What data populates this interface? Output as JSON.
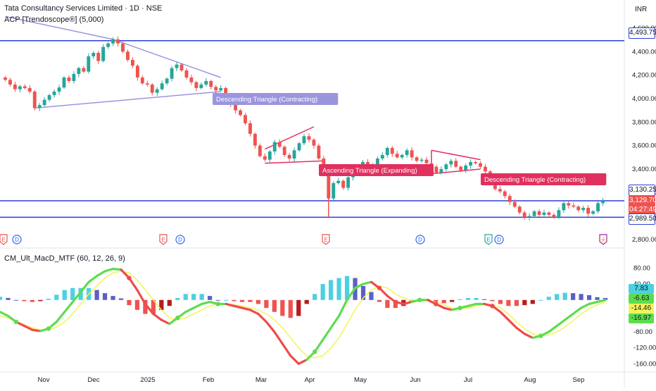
{
  "header": {
    "symbol_title": "Tata Consultancy Services Limited · 1D · NSE",
    "indicator_1": "ACP [Trendoscope®] (5,000)",
    "indicator_2": "CM_Ult_MacD_MTF (60, 12, 26, 9)",
    "currency": "INR"
  },
  "colors": {
    "up_candle": "#26a69a",
    "down_candle": "#ef5350",
    "hline": "#2a3fd8",
    "pattern_purple": "#9b95de",
    "pattern_red": "#e0305f",
    "hist_up": "#4dd0e1",
    "hist_up_dark": "#5b5fc7",
    "hist_down": "#ef5350",
    "macd_green": "#5ddd4e",
    "macd_red": "#ef4b4b",
    "signal_yellow": "#f3f35a"
  },
  "price_pills": [
    {
      "text": "4,493.75",
      "bg": "#ffffff",
      "fg": "#131722",
      "border": "#2a3fd8"
    },
    {
      "text": "3,130.25",
      "bg": "#ffffff",
      "fg": "#131722",
      "border": "#2a3fd8"
    },
    {
      "text": "3,129.70",
      "bg": "#ef5350",
      "fg": "#ffffff",
      "border": "#ef5350"
    },
    {
      "text": "04:27:49",
      "bg": "#ef5350",
      "fg": "#ffffff",
      "border": "#ef5350"
    },
    {
      "text": "2,989.50",
      "bg": "#ffffff",
      "fg": "#131722",
      "border": "#2a3fd8"
    }
  ],
  "macd_pills": [
    {
      "text": "7.83",
      "bg": "#4dd0e1",
      "fg": "#131722"
    },
    {
      "text": "-6.63",
      "bg": "#5ddd4e",
      "fg": "#131722"
    },
    {
      "text": "-14.46",
      "bg": "#f3f35a",
      "fg": "#131722"
    },
    {
      "text": "-16.97",
      "bg": "#5ddd4e",
      "fg": "#131722"
    }
  ],
  "pattern_labels": [
    {
      "text": "Descending Triangle (Contracting)",
      "color": "#9b95de"
    },
    {
      "text": "Ascending Triangle (Expanding)",
      "color": "#e0305f"
    },
    {
      "text": "Descending Triangle (Contracting)",
      "color": "#e0305f"
    }
  ],
  "event_markers": [
    {
      "letter": "E",
      "color": "#ef5350"
    },
    {
      "letter": "D",
      "color": "#2962ff"
    },
    {
      "letter": "E",
      "color": "#ef5350"
    },
    {
      "letter": "D",
      "color": "#2962ff"
    },
    {
      "letter": "E",
      "color": "#ef5350"
    },
    {
      "letter": "D",
      "color": "#2962ff"
    },
    {
      "letter": "E",
      "color": "#26a69a"
    },
    {
      "letter": "D",
      "color": "#2962ff"
    },
    {
      "letter": "⚡",
      "color": "#9c27b0"
    }
  ],
  "chart_data": [
    {
      "type": "candlestick",
      "title": "Tata Consultancy Services Limited · 1D · NSE",
      "x_ticks": [
        "Nov",
        "Dec",
        "2025",
        "Feb",
        "Mar",
        "Apr",
        "May",
        "Jun",
        "Jul",
        "Aug",
        "Sep"
      ],
      "y_ticks": [
        "4,600.00",
        "4,400.00",
        "4,200.00",
        "4,000.00",
        "3,800.00",
        "3,600.00",
        "3,400.00",
        "3,200.00",
        "3,000.00",
        "2,800.00"
      ],
      "ylim": [
        2800,
        4660
      ],
      "horizontal_levels": [
        4493.75,
        3130.25,
        2989.5
      ],
      "last_price": 3129.7,
      "series": [
        {
          "name": "TCS",
          "close": [
            4160,
            4120,
            4080,
            4105,
            4090,
            4060,
            3920,
            3945,
            3990,
            4030,
            4060,
            4095,
            4180,
            4150,
            4210,
            4260,
            4230,
            4360,
            4390,
            4320,
            4440,
            4470,
            4505,
            4470,
            4400,
            4330,
            4280,
            4180,
            4130,
            4120,
            4050,
            4080,
            4130,
            4170,
            4260,
            4290,
            4240,
            4180,
            4140,
            4090,
            4120,
            4150,
            4100,
            4070,
            4090,
            4030,
            3950,
            3900,
            3860,
            3790,
            3700,
            3600,
            3510,
            3480,
            3550,
            3630,
            3590,
            3520,
            3490,
            3560,
            3620,
            3680,
            3650,
            3600,
            3490,
            3380,
            3150,
            3280,
            3300,
            3240,
            3330,
            3390,
            3430,
            3460,
            3420,
            3440,
            3490,
            3520,
            3580,
            3530,
            3500,
            3520,
            3560,
            3500,
            3470,
            3480,
            3450,
            3420,
            3370,
            3400,
            3440,
            3470,
            3420,
            3390,
            3430,
            3460,
            3450,
            3420,
            3380,
            3320,
            3230,
            3210,
            3170,
            3120,
            3080,
            3030,
            2990,
            3000,
            3040,
            3010,
            3030,
            3010,
            2990,
            3050,
            3110,
            3090,
            3080,
            3050,
            3070,
            3020,
            3040,
            3110,
            3129.7
          ]
        }
      ],
      "annotations": [
        {
          "type": "triangle",
          "label": "Descending Triangle (Contracting)"
        },
        {
          "type": "triangle",
          "label": "Ascending Triangle (Expanding)"
        },
        {
          "type": "triangle",
          "label": "Descending Triangle (Contracting)"
        }
      ]
    },
    {
      "type": "line",
      "title": "CM_Ult_MacD_MTF (60, 12, 26, 9)",
      "y_ticks": [
        "80.00",
        "40.00",
        "0.00",
        "-40.00",
        "-80.00",
        "-120.00",
        "-160.00"
      ],
      "ylim": [
        -170,
        95
      ],
      "series": [
        {
          "name": "MACD",
          "values": [
            -30,
            -40,
            -55,
            -65,
            -75,
            -78,
            -72,
            -55,
            -30,
            -5,
            20,
            45,
            60,
            72,
            78,
            76,
            55,
            25,
            -10,
            -35,
            -50,
            -60,
            -45,
            -30,
            -20,
            -10,
            -5,
            -10,
            -10,
            -15,
            -20,
            -25,
            -35,
            -55,
            -80,
            -110,
            -140,
            -160,
            -150,
            -130,
            -100,
            -70,
            -40,
            0,
            30,
            40,
            45,
            30,
            10,
            -5,
            -10,
            -5,
            0,
            0,
            -10,
            -20,
            -25,
            -20,
            -15,
            -10,
            -10,
            -15,
            -30,
            -50,
            -70,
            -85,
            -95,
            -90,
            -80,
            -65,
            -50,
            -35,
            -20,
            -10,
            -5,
            0
          ]
        },
        {
          "name": "Signal",
          "values": [
            -40,
            -45,
            -55,
            -62,
            -70,
            -75,
            -75,
            -68,
            -55,
            -35,
            -10,
            15,
            35,
            55,
            68,
            72,
            68,
            50,
            25,
            0,
            -25,
            -45,
            -50,
            -45,
            -35,
            -25,
            -15,
            -10,
            -10,
            -12,
            -15,
            -20,
            -25,
            -35,
            -50,
            -70,
            -95,
            -120,
            -140,
            -145,
            -140,
            -120,
            -95,
            -60,
            -25,
            5,
            25,
            35,
            30,
            15,
            5,
            -2,
            -3,
            -2,
            -5,
            -12,
            -20,
            -22,
            -20,
            -15,
            -12,
            -12,
            -20,
            -35,
            -55,
            -72,
            -85,
            -90,
            -88,
            -80,
            -68,
            -52,
            -35,
            -22,
            -12,
            -5
          ]
        },
        {
          "name": "Histogram",
          "values": [
            8,
            5,
            0,
            -3,
            -5,
            -3,
            3,
            13,
            25,
            30,
            30,
            30,
            25,
            17,
            10,
            4,
            -13,
            -25,
            -35,
            -35,
            -25,
            -15,
            5,
            15,
            15,
            15,
            10,
            0,
            0,
            -3,
            -5,
            -5,
            -10,
            -20,
            -30,
            -40,
            -45,
            -40,
            -10,
            15,
            40,
            50,
            55,
            60,
            55,
            35,
            20,
            -5,
            -20,
            -20,
            -15,
            -3,
            3,
            2,
            -5,
            -8,
            -5,
            2,
            5,
            5,
            2,
            -3,
            -10,
            -15,
            -15,
            -13,
            -10,
            0,
            8,
            15,
            18,
            17,
            15,
            12,
            7,
            5
          ]
        }
      ]
    }
  ]
}
